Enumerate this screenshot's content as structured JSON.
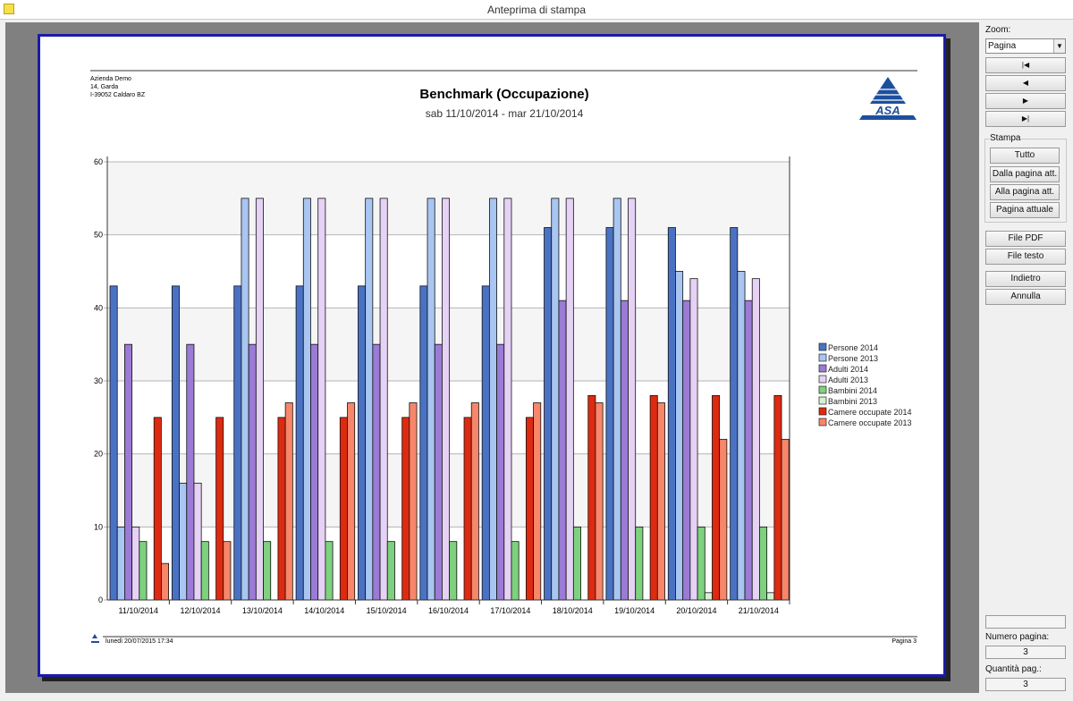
{
  "window": {
    "title": "Anteprima di stampa"
  },
  "panel": {
    "zoom_label": "Zoom:",
    "zoom_value": "Pagina",
    "nav": [
      {
        "name": "first-page-icon",
        "glyph": "⏮"
      },
      {
        "name": "prev-page-icon",
        "glyph": "◀"
      },
      {
        "name": "next-page-icon",
        "glyph": "▶"
      },
      {
        "name": "last-page-icon",
        "glyph": "⏭"
      }
    ],
    "stampa_label": "Stampa",
    "print_buttons": [
      "Tutto",
      "Dalla pagina att.",
      "Alla pagina att.",
      "Pagina attuale"
    ],
    "file_pdf": "File PDF",
    "file_testo": "File testo",
    "indietro": "Indietro",
    "annulla": "Annulla",
    "page_number_label": "Numero pagina:",
    "page_number": "3",
    "page_count_label": "Quantità pag.:",
    "page_count": "3"
  },
  "report": {
    "company": [
      "Azienda Demo",
      "14, Garda",
      "I-39052 Caldaro BZ"
    ],
    "logo_text": "ASA",
    "title": "Benchmark (Occupazione)",
    "subtitle": "sab 11/10/2014  -  mar 21/10/2014",
    "footer_date": "lunedì 20/07/2015 17:34",
    "footer_page": "Pagina 3"
  },
  "chart_data": {
    "type": "bar",
    "title": "Benchmark (Occupazione)",
    "ylim": [
      0,
      60
    ],
    "yticks": [
      0,
      10,
      20,
      30,
      40,
      50,
      60
    ],
    "legend_position": "right",
    "categories": [
      "11/10/2014",
      "12/10/2014",
      "13/10/2014",
      "14/10/2014",
      "15/10/2014",
      "16/10/2014",
      "17/10/2014",
      "18/10/2014",
      "19/10/2014",
      "20/10/2014",
      "21/10/2014"
    ],
    "series": [
      {
        "name": "Persone 2014",
        "color": "#4a72c4",
        "values": [
          43,
          43,
          43,
          43,
          43,
          43,
          43,
          51,
          51,
          51,
          51
        ]
      },
      {
        "name": "Persone 2013",
        "color": "#a9c6f2",
        "values": [
          10,
          16,
          55,
          55,
          55,
          55,
          55,
          55,
          55,
          45,
          45
        ]
      },
      {
        "name": "Adulti 2014",
        "color": "#9b7bd6",
        "values": [
          35,
          35,
          35,
          35,
          35,
          35,
          35,
          41,
          41,
          41,
          41
        ]
      },
      {
        "name": "Adulti 2013",
        "color": "#e6d2f5",
        "values": [
          10,
          16,
          55,
          55,
          55,
          55,
          55,
          55,
          55,
          44,
          44
        ]
      },
      {
        "name": "Bambini 2014",
        "color": "#7ed17e",
        "values": [
          8,
          8,
          8,
          8,
          8,
          8,
          8,
          10,
          10,
          10,
          10
        ]
      },
      {
        "name": "Bambini 2013",
        "color": "#d4f2cf",
        "values": [
          0,
          0,
          0,
          0,
          0,
          0,
          0,
          0,
          0,
          1,
          1
        ]
      },
      {
        "name": "Camere occupate 2014",
        "color": "#dd2a10",
        "values": [
          25,
          25,
          25,
          25,
          25,
          25,
          25,
          28,
          28,
          28,
          28
        ]
      },
      {
        "name": "Camere occupate 2013",
        "color": "#f7866a",
        "values": [
          5,
          8,
          27,
          27,
          27,
          27,
          27,
          27,
          27,
          22,
          22
        ]
      }
    ]
  }
}
